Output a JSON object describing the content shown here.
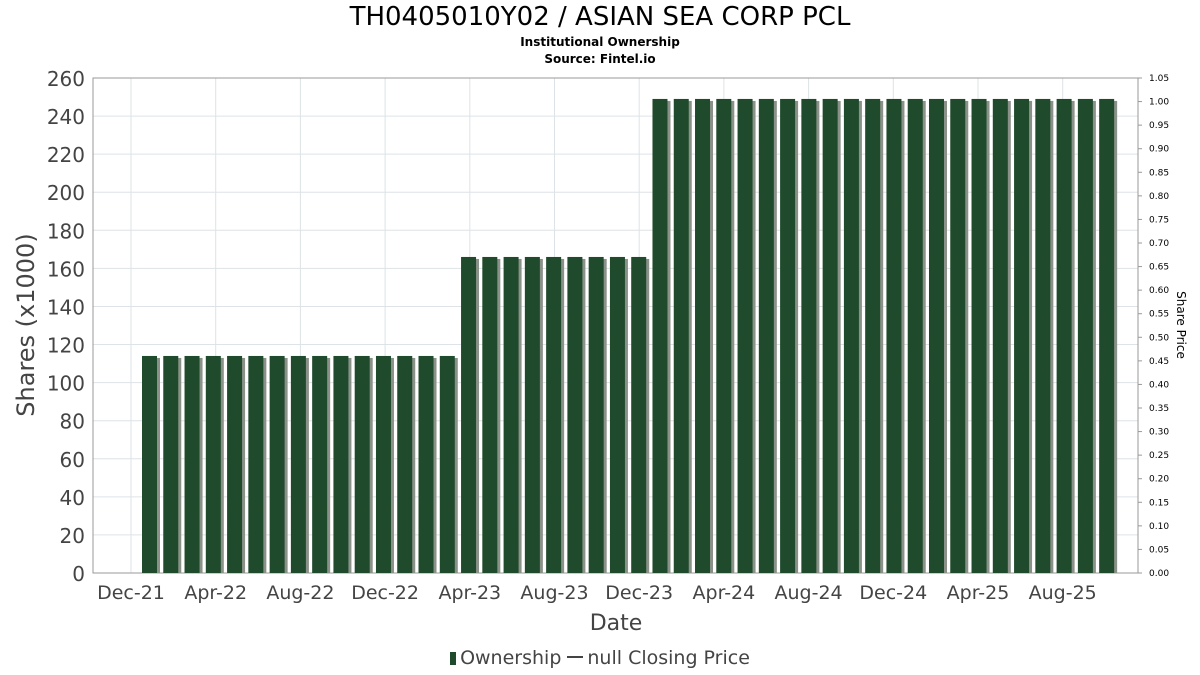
{
  "title": "TH0405010Y02 / ASIAN SEA CORP PCL",
  "subtitle": "Institutional Ownership",
  "source": "Source: Fintel.io",
  "legend": {
    "ownership": "Ownership",
    "price": "null Closing Price"
  },
  "colors": {
    "bar": "#1f4a2b",
    "bar_shadow": "#8a9188",
    "grid": "#dde3e6"
  },
  "chart_data": {
    "type": "bar",
    "xlabel": "Date",
    "ylabel": "Shares (x1000)",
    "y2label": "Share Price",
    "ylim": [
      0,
      260
    ],
    "y2lim": [
      0,
      1.05
    ],
    "yticks": [
      0,
      20,
      40,
      60,
      80,
      100,
      120,
      140,
      160,
      180,
      200,
      220,
      240,
      260
    ],
    "y2ticks": [
      "0.00",
      "0.05",
      "0.10",
      "0.15",
      "0.20",
      "0.25",
      "0.30",
      "0.35",
      "0.40",
      "0.45",
      "0.50",
      "0.55",
      "0.60",
      "0.65",
      "0.70",
      "0.75",
      "0.80",
      "0.85",
      "0.90",
      "0.95",
      "1.00",
      "1.05"
    ],
    "xticks": [
      "Dec-21",
      "Apr-22",
      "Aug-22",
      "Dec-22",
      "Apr-23",
      "Aug-23",
      "Dec-23",
      "Apr-24",
      "Aug-24",
      "Dec-24",
      "Apr-25",
      "Aug-25"
    ],
    "grid": true,
    "legend_position": "bottom",
    "series": [
      {
        "name": "Ownership",
        "values": [
          114,
          114,
          114,
          114,
          114,
          114,
          114,
          114,
          114,
          114,
          114,
          114,
          114,
          114,
          114,
          166,
          166,
          166,
          166,
          166,
          166,
          166,
          166,
          166,
          249,
          249,
          249,
          249,
          249,
          249,
          249,
          249,
          249,
          249,
          249,
          249,
          249,
          249,
          249,
          249,
          249,
          249,
          249,
          249,
          249,
          249
        ]
      }
    ]
  }
}
